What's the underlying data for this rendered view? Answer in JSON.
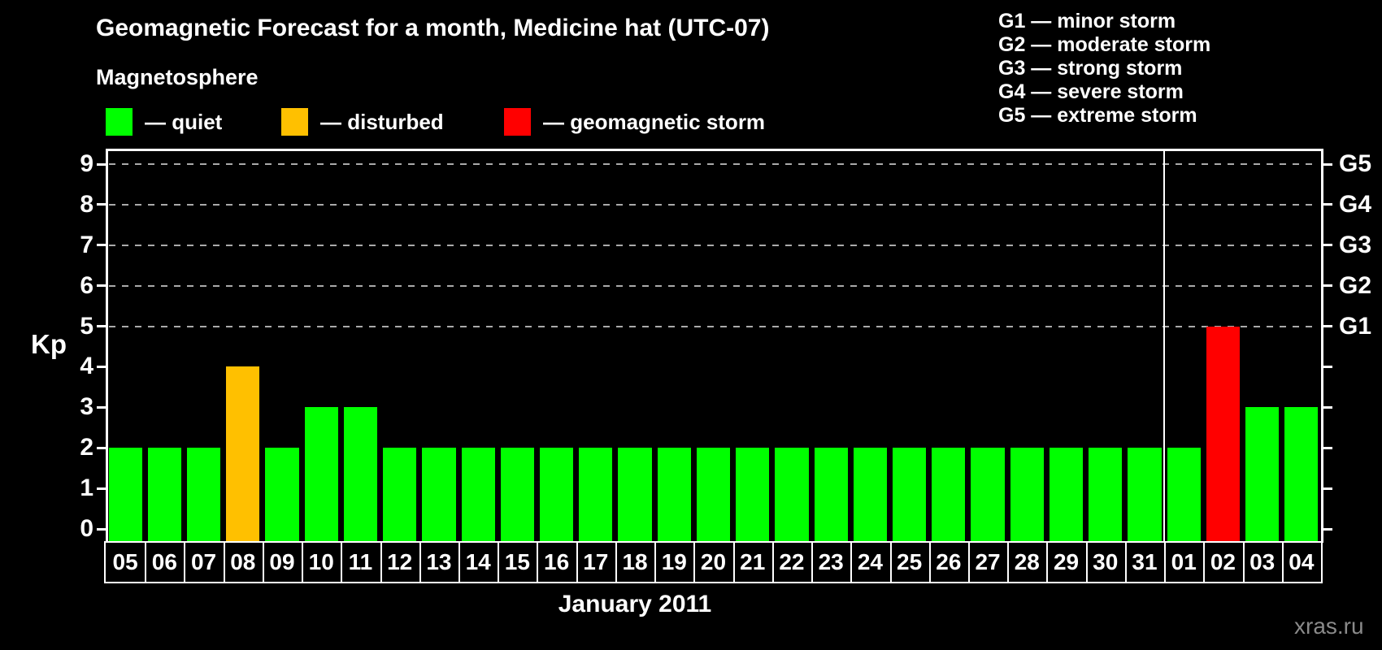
{
  "header": {
    "title": "Geomagnetic Forecast for a month, Medicine hat (UTC-07)",
    "subtitle": "Magnetosphere"
  },
  "magnetosphere_legend": [
    {
      "state": "quiet",
      "label": "— quiet",
      "color": "#00ff00"
    },
    {
      "state": "disturbed",
      "label": "— disturbed",
      "color": "#ffc000"
    },
    {
      "state": "storm",
      "label": "— geomagnetic storm",
      "color": "#ff0000"
    }
  ],
  "storm_scale_legend": [
    "G1 — minor storm",
    "G2 — moderate storm",
    "G3 — strong storm",
    "G4 — severe storm",
    "G5 — extreme storm"
  ],
  "chart_data": {
    "type": "bar",
    "title": "Geomagnetic Forecast for a month, Medicine hat (UTC-07)",
    "ylabel": "Kp",
    "xlabel": "January 2011",
    "ylim": [
      0,
      9
    ],
    "yticks": [
      0,
      1,
      2,
      3,
      4,
      5,
      6,
      7,
      8,
      9
    ],
    "gridlines_kp": [
      5,
      6,
      7,
      8,
      9
    ],
    "right_axis": [
      {
        "kp": 5,
        "label": "G1"
      },
      {
        "kp": 6,
        "label": "G2"
      },
      {
        "kp": 7,
        "label": "G3"
      },
      {
        "kp": 8,
        "label": "G4"
      },
      {
        "kp": 9,
        "label": "G5"
      }
    ],
    "categories": [
      "05",
      "06",
      "07",
      "08",
      "09",
      "10",
      "11",
      "12",
      "13",
      "14",
      "15",
      "16",
      "17",
      "18",
      "19",
      "20",
      "21",
      "22",
      "23",
      "24",
      "25",
      "26",
      "27",
      "28",
      "29",
      "30",
      "31",
      "01",
      "02",
      "03",
      "04"
    ],
    "values": [
      2,
      2,
      2,
      4,
      2,
      3,
      3,
      2,
      2,
      2,
      2,
      2,
      2,
      2,
      2,
      2,
      2,
      2,
      2,
      2,
      2,
      2,
      2,
      2,
      2,
      2,
      2,
      2,
      5,
      3,
      3
    ],
    "month_separator_after_index": 26,
    "color_rule": {
      "quiet_max": 3,
      "disturbed": 4,
      "storm_min": 5
    },
    "legend_position": "top",
    "grid": "dashed horizontal at storm levels only"
  },
  "watermark": "xras.ru",
  "colors": {
    "background": "#000000",
    "text": "#ffffff",
    "axis": "#ffffff",
    "grid": "#aaaaaa",
    "quiet": "#00ff00",
    "disturbed": "#ffc000",
    "storm": "#ff0000",
    "watermark": "#8a8a8a"
  }
}
